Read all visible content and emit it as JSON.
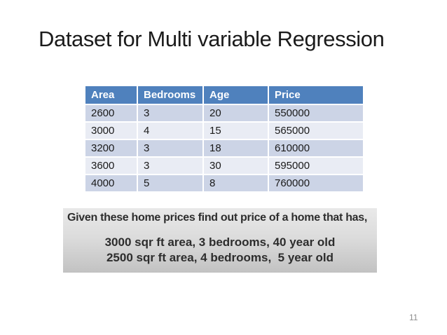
{
  "slide": {
    "title": "Dataset for Multi variable Regression",
    "page_number": "11"
  },
  "table": {
    "headers": [
      "Area",
      "Bedrooms",
      "Age",
      "Price"
    ],
    "rows": [
      [
        "2600",
        "3",
        "20",
        "550000"
      ],
      [
        "3000",
        "4",
        "15",
        "565000"
      ],
      [
        "3200",
        "3",
        "18",
        "610000"
      ],
      [
        "3600",
        "3",
        "30",
        "595000"
      ],
      [
        "4000",
        "5",
        "8",
        "760000"
      ]
    ],
    "colors": {
      "header_bg": "#4F81BD",
      "header_text": "#FFFFFF",
      "row_band_odd": "#CCD4E6",
      "row_band_even": "#E9ECF4"
    }
  },
  "question_box": {
    "line1": "Given these home prices find out price of a home that has,",
    "line2": "3000 sqr ft area, 3 bedrooms, 40 year old",
    "line3": "2500 sqr ft area, 4 bedrooms,  5 year old",
    "bg_top": "#E9E9E9",
    "bg_bottom": "#C2C2C2"
  }
}
